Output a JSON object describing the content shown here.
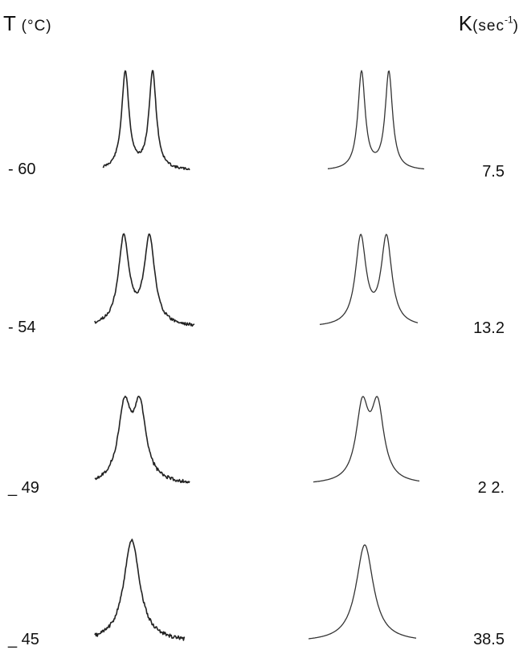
{
  "header": {
    "temp_symbol": "T",
    "temp_unit": "(°C)",
    "rate_symbol": "K",
    "rate_unit": "(sec",
    "rate_exp": "-1",
    "rate_close": ")"
  },
  "rows": [
    {
      "temperature": "- 60",
      "rate": "7.5"
    },
    {
      "temperature": "- 54",
      "rate": "13.2"
    },
    {
      "temperature": "_ 49",
      "rate": "2 2."
    },
    {
      "temperature": "_ 45",
      "rate": "38.5"
    }
  ]
}
